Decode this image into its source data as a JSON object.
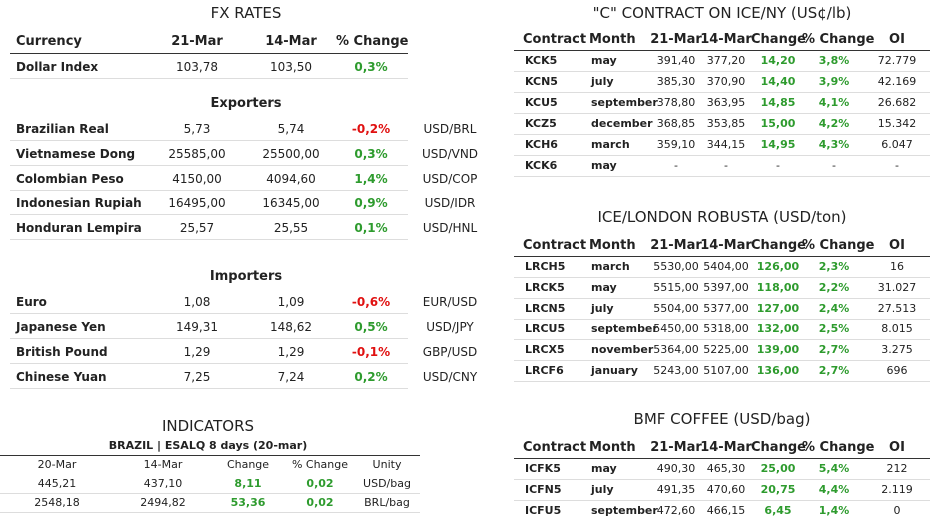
{
  "fx_rates": {
    "title": "FX RATES",
    "headers": [
      "Currency",
      "21-Mar",
      "14-Mar",
      "% Change"
    ],
    "rows": [
      [
        "Dollar Index",
        "103,78",
        "103,50",
        "0,3%"
      ]
    ]
  },
  "exporters": {
    "title": "Exporters",
    "rows": [
      [
        "Brazilian Real",
        "5,73",
        "5,74",
        "-0,2%",
        "USD/BRL"
      ],
      [
        "Vietnamese Dong",
        "25585,00",
        "25500,00",
        "0,3%",
        "USD/VND"
      ],
      [
        "Colombian Peso",
        "4150,00",
        "4094,60",
        "1,4%",
        "USD/COP"
      ],
      [
        "Indonesian Rupiah",
        "16495,00",
        "16345,00",
        "0,9%",
        "USD/IDR"
      ],
      [
        "Honduran Lempira",
        "25,57",
        "25,55",
        "0,1%",
        "USD/HNL"
      ]
    ]
  },
  "importers": {
    "title": "Importers",
    "rows": [
      [
        "Euro",
        "1,08",
        "1,09",
        "-0,6%",
        "EUR/USD"
      ],
      [
        "Japanese Yen",
        "149,31",
        "148,62",
        "0,5%",
        "USD/JPY"
      ],
      [
        "British Pound",
        "1,29",
        "1,29",
        "-0,1%",
        "GBP/USD"
      ],
      [
        "Chinese Yuan",
        "7,25",
        "7,24",
        "0,2%",
        "USD/CNY"
      ]
    ]
  },
  "indicators": {
    "title": "INDICATORS",
    "subtitle": "BRAZIL | ESALQ 8 days (20-mar)",
    "headers": [
      "20-Mar",
      "14-Mar",
      "Change",
      "% Change",
      "Unity"
    ],
    "rows": [
      [
        "445,21",
        "437,10",
        "8,11",
        "0,02",
        "USD/bag"
      ],
      [
        "2548,18",
        "2494,82",
        "53,36",
        "0,02",
        "BRL/bag"
      ]
    ]
  },
  "c_contract": {
    "title": "\"C\" CONTRACT ON ICE/NY (US¢/lb)",
    "headers": [
      "Contract",
      "Month",
      "21-Mar",
      "14-Mar",
      "Change",
      "% Change",
      "OI"
    ],
    "rows": [
      [
        "KCK5",
        "may",
        "391,40",
        "377,20",
        "14,20",
        "3,8%",
        "72.779"
      ],
      [
        "KCN5",
        "july",
        "385,30",
        "370,90",
        "14,40",
        "3,9%",
        "42.169"
      ],
      [
        "KCU5",
        "september",
        "378,80",
        "363,95",
        "14,85",
        "4,1%",
        "26.682"
      ],
      [
        "KCZ5",
        "december",
        "368,85",
        "353,85",
        "15,00",
        "4,2%",
        "15.342"
      ],
      [
        "KCH6",
        "march",
        "359,10",
        "344,15",
        "14,95",
        "4,3%",
        "6.047"
      ],
      [
        "KCK6",
        "may",
        "-",
        "-",
        "-",
        "-",
        "-"
      ]
    ]
  },
  "robusta": {
    "title": "ICE/LONDON ROBUSTA (USD/ton)",
    "headers": [
      "Contract",
      "Month",
      "21-Mar",
      "14-Mar",
      "Change",
      "% Change",
      "OI"
    ],
    "rows": [
      [
        "LRCH5",
        "march",
        "5530,00",
        "5404,00",
        "126,00",
        "2,3%",
        "16"
      ],
      [
        "LRCK5",
        "may",
        "5515,00",
        "5397,00",
        "118,00",
        "2,2%",
        "31.027"
      ],
      [
        "LRCN5",
        "july",
        "5504,00",
        "5377,00",
        "127,00",
        "2,4%",
        "27.513"
      ],
      [
        "LRCU5",
        "september",
        "5450,00",
        "5318,00",
        "132,00",
        "2,5%",
        "8.015"
      ],
      [
        "LRCX5",
        "november",
        "5364,00",
        "5225,00",
        "139,00",
        "2,7%",
        "3.275"
      ],
      [
        "LRCF6",
        "january",
        "5243,00",
        "5107,00",
        "136,00",
        "2,7%",
        "696"
      ]
    ]
  },
  "bmf": {
    "title": "BMF COFFEE (USD/bag)",
    "headers": [
      "Contract",
      "Month",
      "21-Mar",
      "14-Mar",
      "Change",
      "% Change",
      "OI"
    ],
    "rows": [
      [
        "ICFK5",
        "may",
        "490,30",
        "465,30",
        "25,00",
        "5,4%",
        "212"
      ],
      [
        "ICFN5",
        "july",
        "491,35",
        "470,60",
        "20,75",
        "4,4%",
        "2.119"
      ],
      [
        "ICFU5",
        "september",
        "472,60",
        "466,15",
        "6,45",
        "1,4%",
        "0"
      ]
    ]
  }
}
